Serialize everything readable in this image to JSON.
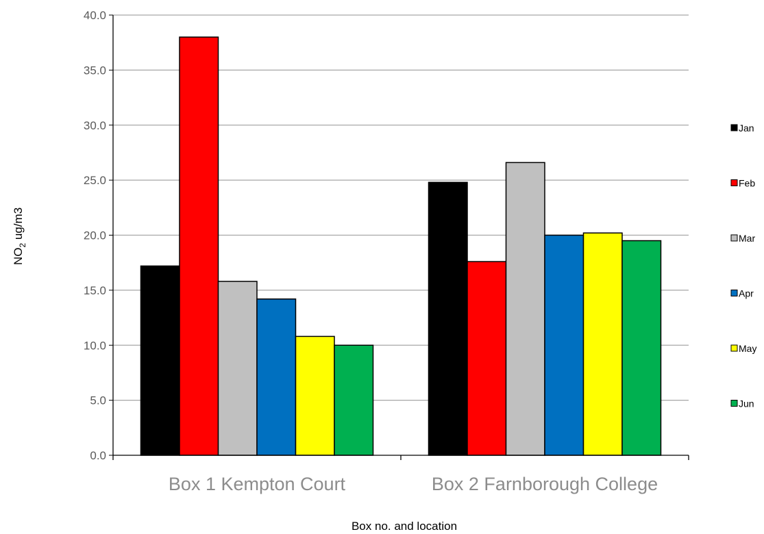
{
  "chart_data": {
    "type": "bar",
    "categories": [
      "Box 1 Kempton Court",
      "Box 2 Farnborough College"
    ],
    "series": [
      {
        "name": "Jan",
        "color": "#000000",
        "values": [
          17.2,
          24.8
        ]
      },
      {
        "name": "Feb",
        "color": "#ff0000",
        "values": [
          38.0,
          17.6
        ]
      },
      {
        "name": "Mar",
        "color": "#c0c0c0",
        "values": [
          15.8,
          26.6
        ]
      },
      {
        "name": "Apr",
        "color": "#0070c0",
        "values": [
          14.2,
          20.0
        ]
      },
      {
        "name": "May",
        "color": "#ffff00",
        "values": [
          10.8,
          20.2
        ]
      },
      {
        "name": "Jun",
        "color": "#00b050",
        "values": [
          10.0,
          19.5
        ]
      }
    ],
    "ylabel_main": "NO",
    "ylabel_sub": "2",
    "ylabel_rest": " ug/m3",
    "xlabel": "Box no. and location",
    "ylim": [
      0,
      40
    ],
    "yticks": [
      "0.0",
      "5.0",
      "10.0",
      "15.0",
      "20.0",
      "25.0",
      "30.0",
      "35.0",
      "40.0"
    ],
    "grid": true,
    "legend_position": "right"
  }
}
